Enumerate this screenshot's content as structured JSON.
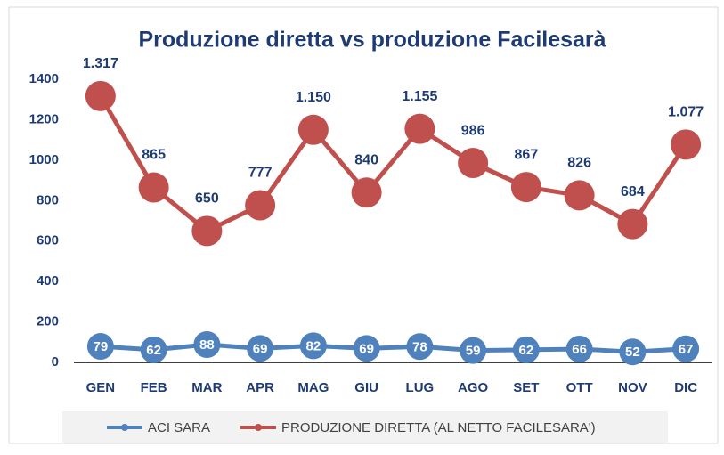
{
  "chart_data": {
    "type": "line",
    "title": "Produzione diretta vs produzione Facilesarà",
    "categories": [
      "GEN",
      "FEB",
      "MAR",
      "APR",
      "MAG",
      "GIU",
      "LUG",
      "AGO",
      "SET",
      "OTT",
      "NOV",
      "DIC"
    ],
    "series": [
      {
        "name": "ACI SARA",
        "color": "#4f81bd",
        "values": [
          79,
          62,
          88,
          69,
          82,
          69,
          78,
          59,
          62,
          66,
          52,
          67
        ]
      },
      {
        "name": "PRODUZIONE DIRETTA (AL NETTO FACILESARA')",
        "color": "#c0504d",
        "values": [
          1317,
          865,
          650,
          777,
          1150,
          840,
          1155,
          986,
          867,
          826,
          684,
          1077
        ],
        "value_labels": [
          "1.317",
          "865",
          "650",
          "777",
          "1.150",
          "840",
          "1.155",
          "986",
          "867",
          "826",
          "684",
          "1.077"
        ]
      }
    ],
    "ylim": [
      0,
      1400
    ],
    "yticks": [
      0,
      200,
      400,
      600,
      800,
      1000,
      1200,
      1400
    ],
    "grid": false,
    "legend": "bottom"
  }
}
